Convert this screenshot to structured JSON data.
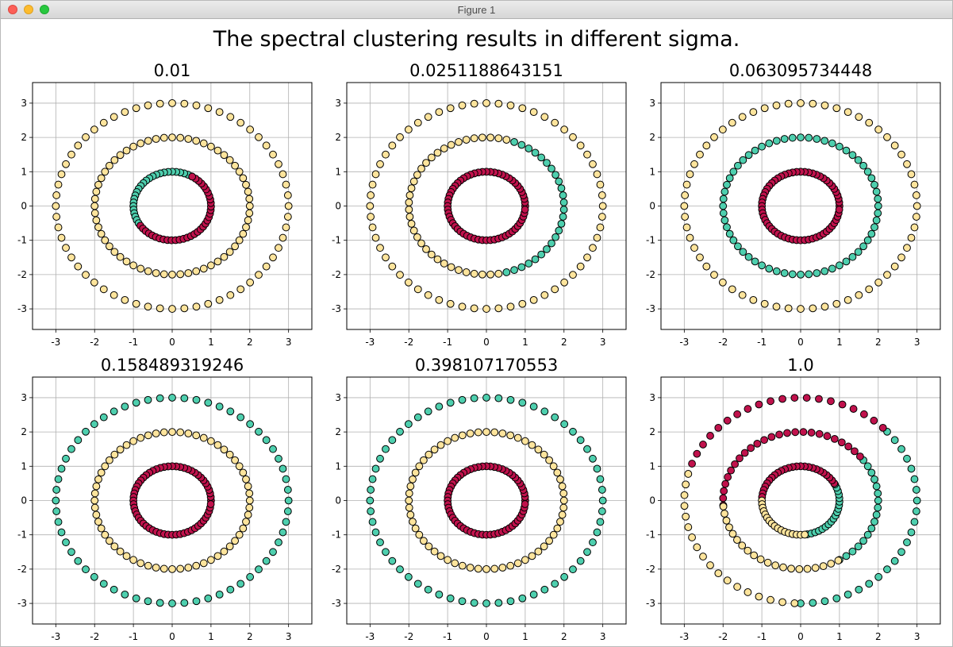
{
  "window": {
    "title": "Figure 1",
    "buttons": [
      "close",
      "minimize",
      "zoom"
    ]
  },
  "figure": {
    "suptitle": "The spectral clustering results in different sigma."
  },
  "colors": {
    "yellow": "#fde49c",
    "teal": "#4ecfae",
    "crimson": "#c0124c",
    "grid": "#b0b0b0",
    "marker_edge": "#000000"
  },
  "chart_data": [
    {
      "type": "scatter",
      "title": "0.01",
      "xlim": [
        -3.6,
        3.6
      ],
      "ylim": [
        -3.6,
        3.6
      ],
      "xticks": [
        -3,
        -2,
        -1,
        0,
        1,
        2,
        3
      ],
      "yticks": [
        -3,
        -2,
        -1,
        0,
        1,
        2,
        3
      ],
      "grid": true,
      "rings": [
        {
          "radius": 3,
          "points": 60,
          "clusters": [
            {
              "color": "yellow",
              "from_deg": 0,
              "to_deg": 360
            }
          ]
        },
        {
          "radius": 2,
          "points": 60,
          "clusters": [
            {
              "color": "yellow",
              "from_deg": 0,
              "to_deg": 360
            }
          ]
        },
        {
          "radius": 1,
          "points": 60,
          "clusters": [
            {
              "color": "teal",
              "from_deg": 60,
              "to_deg": 215
            },
            {
              "color": "crimson",
              "from_deg": 215,
              "to_deg": 420
            }
          ]
        }
      ]
    },
    {
      "type": "scatter",
      "title": "0.0251188643151",
      "xlim": [
        -3.6,
        3.6
      ],
      "ylim": [
        -3.6,
        3.6
      ],
      "xticks": [
        -3,
        -2,
        -1,
        0,
        1,
        2,
        3
      ],
      "yticks": [
        -3,
        -2,
        -1,
        0,
        1,
        2,
        3
      ],
      "grid": true,
      "rings": [
        {
          "radius": 3,
          "points": 60,
          "clusters": [
            {
              "color": "yellow",
              "from_deg": 0,
              "to_deg": 360
            }
          ]
        },
        {
          "radius": 2,
          "points": 60,
          "clusters": [
            {
              "color": "teal",
              "from_deg": -75,
              "to_deg": 75
            },
            {
              "color": "yellow",
              "from_deg": 75,
              "to_deg": 285
            }
          ]
        },
        {
          "radius": 1,
          "points": 60,
          "clusters": [
            {
              "color": "crimson",
              "from_deg": 0,
              "to_deg": 360
            }
          ]
        }
      ]
    },
    {
      "type": "scatter",
      "title": "0.063095734448",
      "xlim": [
        -3.6,
        3.6
      ],
      "ylim": [
        -3.6,
        3.6
      ],
      "xticks": [
        -3,
        -2,
        -1,
        0,
        1,
        2,
        3
      ],
      "yticks": [
        -3,
        -2,
        -1,
        0,
        1,
        2,
        3
      ],
      "grid": true,
      "rings": [
        {
          "radius": 3,
          "points": 60,
          "clusters": [
            {
              "color": "yellow",
              "from_deg": 0,
              "to_deg": 360
            }
          ]
        },
        {
          "radius": 2,
          "points": 60,
          "clusters": [
            {
              "color": "teal",
              "from_deg": 0,
              "to_deg": 360
            }
          ]
        },
        {
          "radius": 1,
          "points": 60,
          "clusters": [
            {
              "color": "crimson",
              "from_deg": 0,
              "to_deg": 360
            }
          ]
        }
      ]
    },
    {
      "type": "scatter",
      "title": "0.158489319246",
      "xlim": [
        -3.6,
        3.6
      ],
      "ylim": [
        -3.6,
        3.6
      ],
      "xticks": [
        -3,
        -2,
        -1,
        0,
        1,
        2,
        3
      ],
      "yticks": [
        -3,
        -2,
        -1,
        0,
        1,
        2,
        3
      ],
      "grid": true,
      "rings": [
        {
          "radius": 3,
          "points": 60,
          "clusters": [
            {
              "color": "teal",
              "from_deg": 0,
              "to_deg": 360
            }
          ]
        },
        {
          "radius": 2,
          "points": 60,
          "clusters": [
            {
              "color": "yellow",
              "from_deg": 0,
              "to_deg": 360
            }
          ]
        },
        {
          "radius": 1,
          "points": 60,
          "clusters": [
            {
              "color": "crimson",
              "from_deg": 0,
              "to_deg": 360
            }
          ]
        }
      ]
    },
    {
      "type": "scatter",
      "title": "0.398107170553",
      "xlim": [
        -3.6,
        3.6
      ],
      "ylim": [
        -3.6,
        3.6
      ],
      "xticks": [
        -3,
        -2,
        -1,
        0,
        1,
        2,
        3
      ],
      "yticks": [
        -3,
        -2,
        -1,
        0,
        1,
        2,
        3
      ],
      "grid": true,
      "rings": [
        {
          "radius": 3,
          "points": 60,
          "clusters": [
            {
              "color": "teal",
              "from_deg": 0,
              "to_deg": 360
            }
          ]
        },
        {
          "radius": 2,
          "points": 60,
          "clusters": [
            {
              "color": "yellow",
              "from_deg": 0,
              "to_deg": 360
            }
          ]
        },
        {
          "radius": 1,
          "points": 60,
          "clusters": [
            {
              "color": "crimson",
              "from_deg": 0,
              "to_deg": 360
            }
          ]
        }
      ]
    },
    {
      "type": "scatter",
      "title": "1.0",
      "xlim": [
        -3.6,
        3.6
      ],
      "ylim": [
        -3.6,
        3.6
      ],
      "xticks": [
        -3,
        -2,
        -1,
        0,
        1,
        2,
        3
      ],
      "yticks": [
        -3,
        -2,
        -1,
        0,
        1,
        2,
        3
      ],
      "grid": true,
      "rings": [
        {
          "radius": 3,
          "points": 60,
          "clusters": [
            {
              "color": "teal",
              "from_deg": -90,
              "to_deg": 45
            },
            {
              "color": "crimson",
              "from_deg": 45,
              "to_deg": 165
            },
            {
              "color": "yellow",
              "from_deg": 165,
              "to_deg": 270
            }
          ]
        },
        {
          "radius": 2,
          "points": 60,
          "clusters": [
            {
              "color": "teal",
              "from_deg": -60,
              "to_deg": 40
            },
            {
              "color": "crimson",
              "from_deg": 40,
              "to_deg": 185
            },
            {
              "color": "yellow",
              "from_deg": 185,
              "to_deg": 300
            }
          ]
        },
        {
          "radius": 1,
          "points": 60,
          "clusters": [
            {
              "color": "teal",
              "from_deg": -80,
              "to_deg": 30
            },
            {
              "color": "crimson",
              "from_deg": 30,
              "to_deg": 180
            },
            {
              "color": "yellow",
              "from_deg": 180,
              "to_deg": 280
            }
          ]
        }
      ]
    }
  ]
}
